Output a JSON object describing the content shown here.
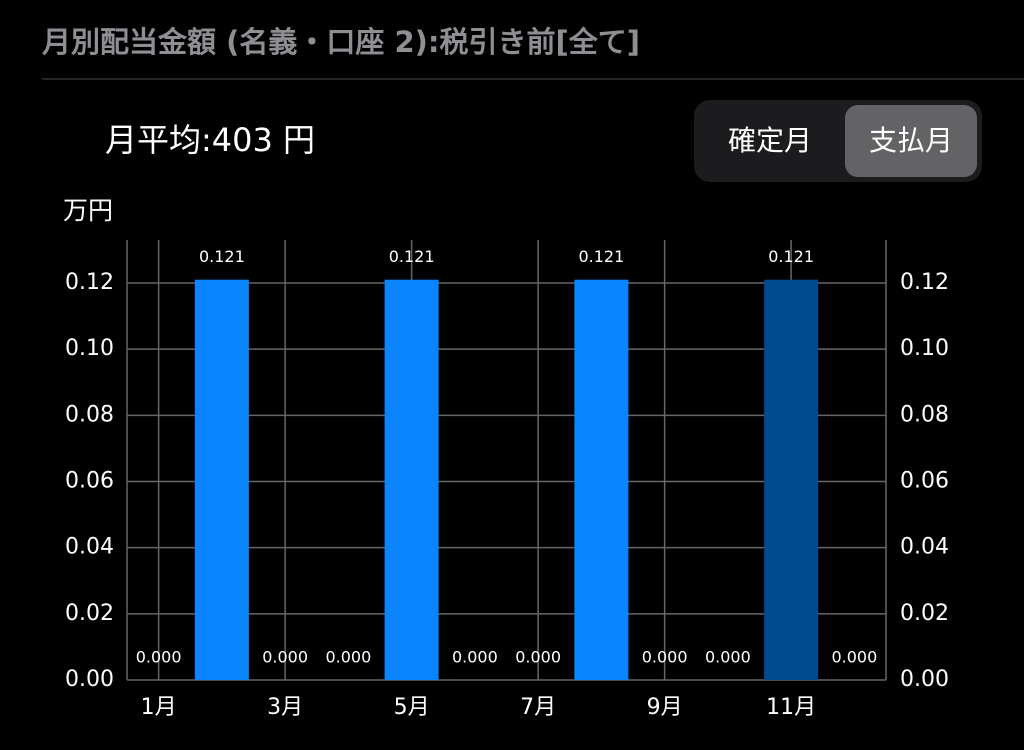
{
  "header": {
    "title": "月別配当金額 (名義・口座 2):税引き前[全て]"
  },
  "summary": "月平均:403 円",
  "toggle": {
    "options": [
      "確定月",
      "支払月"
    ],
    "selected": 1
  },
  "chart_data": {
    "type": "bar",
    "ylabel": "万円",
    "categories": [
      "1月",
      null,
      "3月",
      null,
      "5月",
      null,
      "7月",
      null,
      "9月",
      null,
      "11月",
      null
    ],
    "values": [
      0,
      0.121,
      0,
      0,
      0.121,
      0,
      0,
      0.121,
      0,
      0,
      0.121,
      0
    ],
    "value_labels": [
      "0.000",
      "0.121",
      "0.000",
      "0.000",
      "0.121",
      "0.000",
      "0.000",
      "0.121",
      "0.000",
      "0.000",
      "0.121",
      "0.000"
    ],
    "colors": [
      "#0a84ff",
      "#0a84ff",
      "#0a84ff",
      "#0a84ff",
      "#0a84ff",
      "#0a84ff",
      "#0a84ff",
      "#0a84ff",
      "#0a84ff",
      "#0a84ff",
      "#004a8f",
      "#0a84ff"
    ],
    "ylim": [
      0,
      0.133
    ],
    "yticks": [
      {
        "value": 0,
        "label": "0.00"
      },
      {
        "value": 0.02,
        "label": "0.02"
      },
      {
        "value": 0.04,
        "label": "0.04"
      },
      {
        "value": 0.06,
        "label": "0.06"
      },
      {
        "value": 0.08,
        "label": "0.08"
      },
      {
        "value": 0.1,
        "label": "0.10"
      },
      {
        "value": 0.12,
        "label": "0.12"
      }
    ],
    "grid": true
  }
}
